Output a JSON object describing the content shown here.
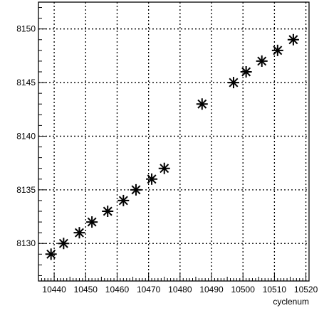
{
  "chart_data": {
    "type": "scatter",
    "title": "",
    "xlabel": "cyclenum",
    "ylabel": "",
    "xlim": [
      10435,
      10521
    ],
    "ylim": [
      8126.5,
      8152.5
    ],
    "x_major_ticks": [
      10440,
      10450,
      10460,
      10470,
      10480,
      10490,
      10500,
      10510,
      10520
    ],
    "y_major_ticks": [
      8130,
      8135,
      8140,
      8145,
      8150
    ],
    "grid": true,
    "marker": "asterisk",
    "series": [
      {
        "name": "",
        "x": [
          10439,
          10443,
          10448,
          10452,
          10457,
          10462,
          10466,
          10471,
          10475,
          10487,
          10497,
          10501,
          10506,
          10511,
          10516
        ],
        "y": [
          8129,
          8130,
          8131,
          8132,
          8133,
          8134,
          8135,
          8136,
          8137,
          8143,
          8145,
          8146,
          8147,
          8148,
          8149
        ]
      }
    ]
  }
}
